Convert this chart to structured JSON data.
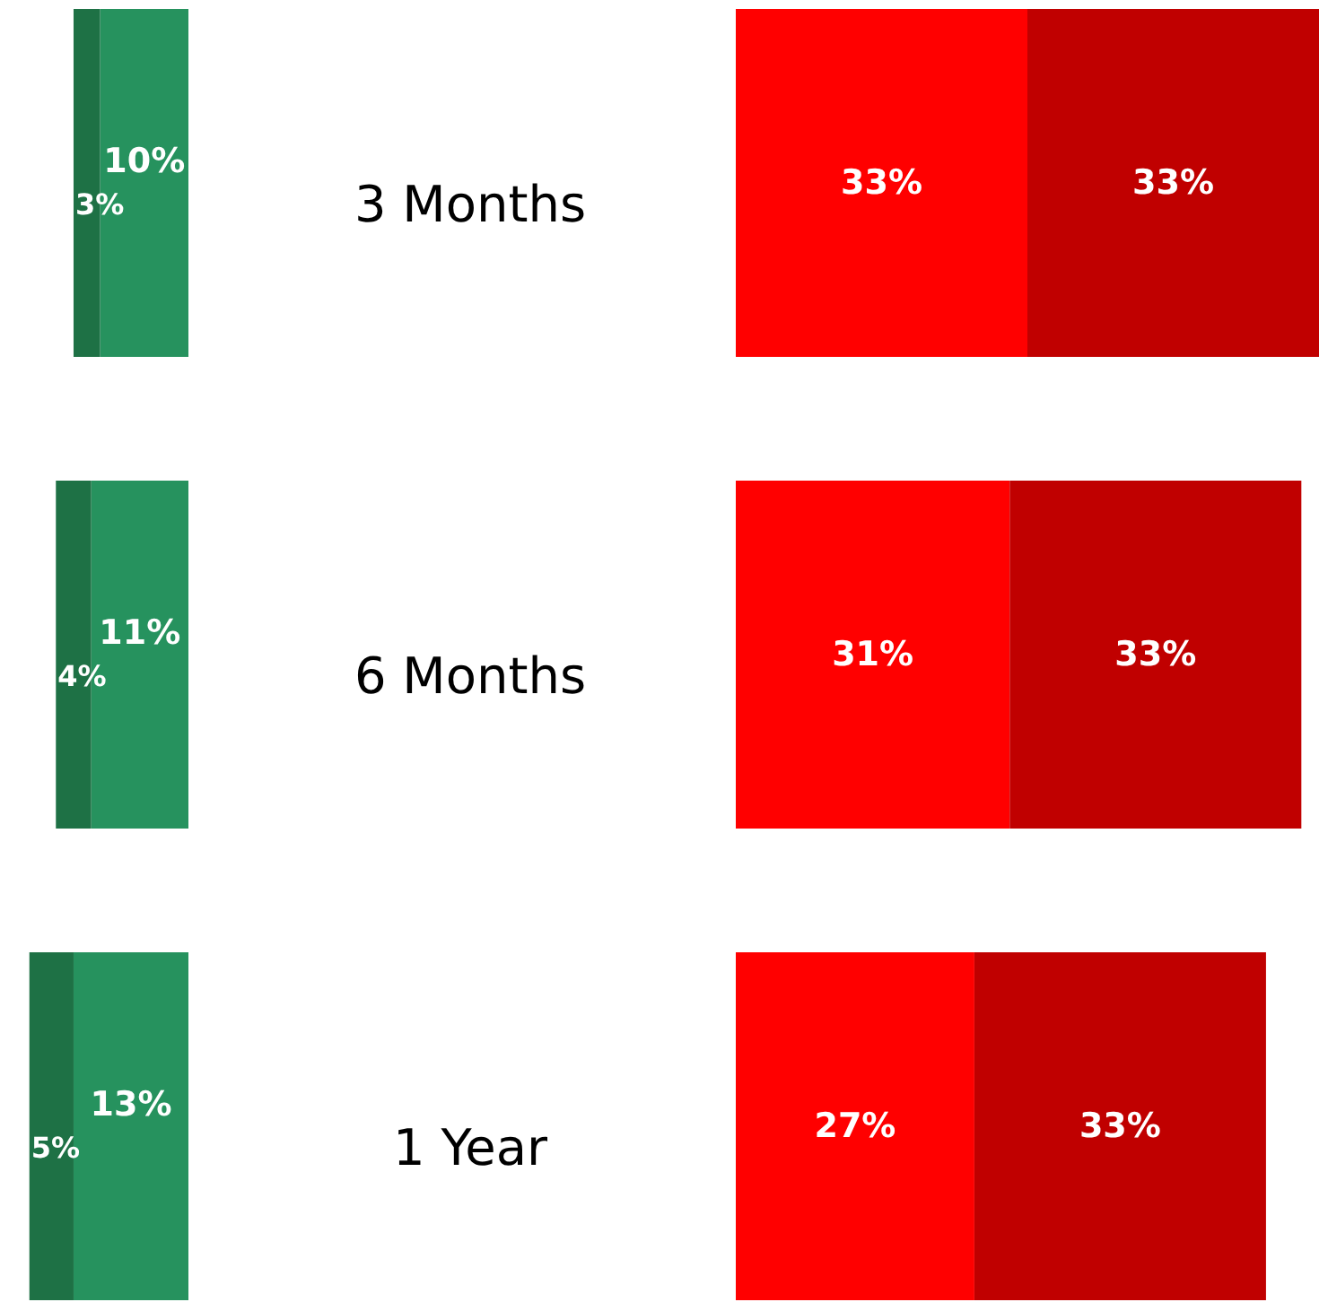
{
  "chart_data": [
    {
      "type": "bar",
      "orientation": "horizontal",
      "stacked": true,
      "categories": [
        "3 Months",
        "6 Months",
        "1 Year"
      ],
      "series": [
        {
          "color": "#26925e",
          "values": [
            10,
            11,
            13
          ],
          "value_labels": [
            "10%",
            "11%",
            "13%"
          ]
        },
        {
          "color": "#1e7145",
          "values": [
            3,
            4,
            5
          ],
          "value_labels": [
            "3%",
            "4%",
            "5%"
          ]
        }
      ]
    },
    {
      "type": "bar",
      "orientation": "horizontal",
      "stacked": true,
      "categories": [
        null,
        null,
        null
      ],
      "series": [
        {
          "color": "#ff0000",
          "values": [
            33,
            31,
            27
          ],
          "value_labels": [
            "33%",
            "31%",
            "27%"
          ]
        },
        {
          "color": "#c00000",
          "values": [
            33,
            33,
            33
          ],
          "value_labels": [
            "33%",
            "33%",
            "33%"
          ]
        }
      ]
    }
  ]
}
